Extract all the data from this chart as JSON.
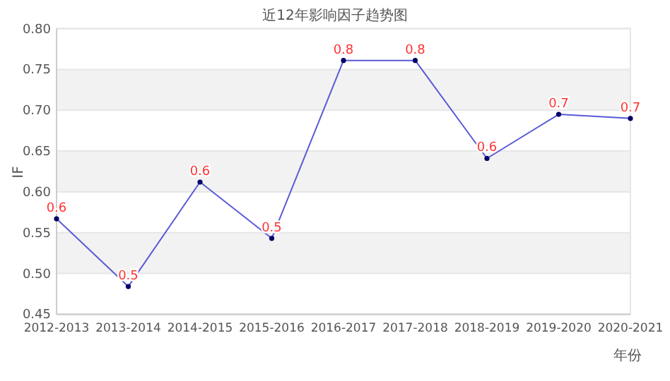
{
  "chart_data": {
    "type": "line",
    "title": "近12年影响因子趋势图",
    "xlabel": "年份",
    "ylabel": "IF",
    "categories": [
      "2012-2013",
      "2013-2014",
      "2014-2015",
      "2015-2016",
      "2016-2017",
      "2017-2018",
      "2018-2019",
      "2019-2020",
      "2020-2021"
    ],
    "series": [
      {
        "color": "#5a5ad8",
        "values": [
          0.567,
          0.484,
          0.612,
          0.543,
          0.761,
          0.761,
          0.641,
          0.695,
          0.69
        ],
        "value_labels": [
          "0.6",
          "0.5",
          "0.6",
          "0.5",
          "0.8",
          "0.8",
          "0.6",
          "0.7",
          "0.7"
        ]
      }
    ],
    "ylim": [
      0.45,
      0.8
    ],
    "yticks": [
      0.45,
      {
        "value": 0.5,
        "label": "0.50"
      },
      0.55,
      {
        "value": 0.6,
        "label": "0.60"
      },
      0.65,
      {
        "value": 0.7,
        "label": "0.70"
      },
      0.75,
      {
        "value": 0.8,
        "label": "0.80"
      }
    ],
    "grid": "y",
    "marker": "circle",
    "line_style": "solid"
  }
}
